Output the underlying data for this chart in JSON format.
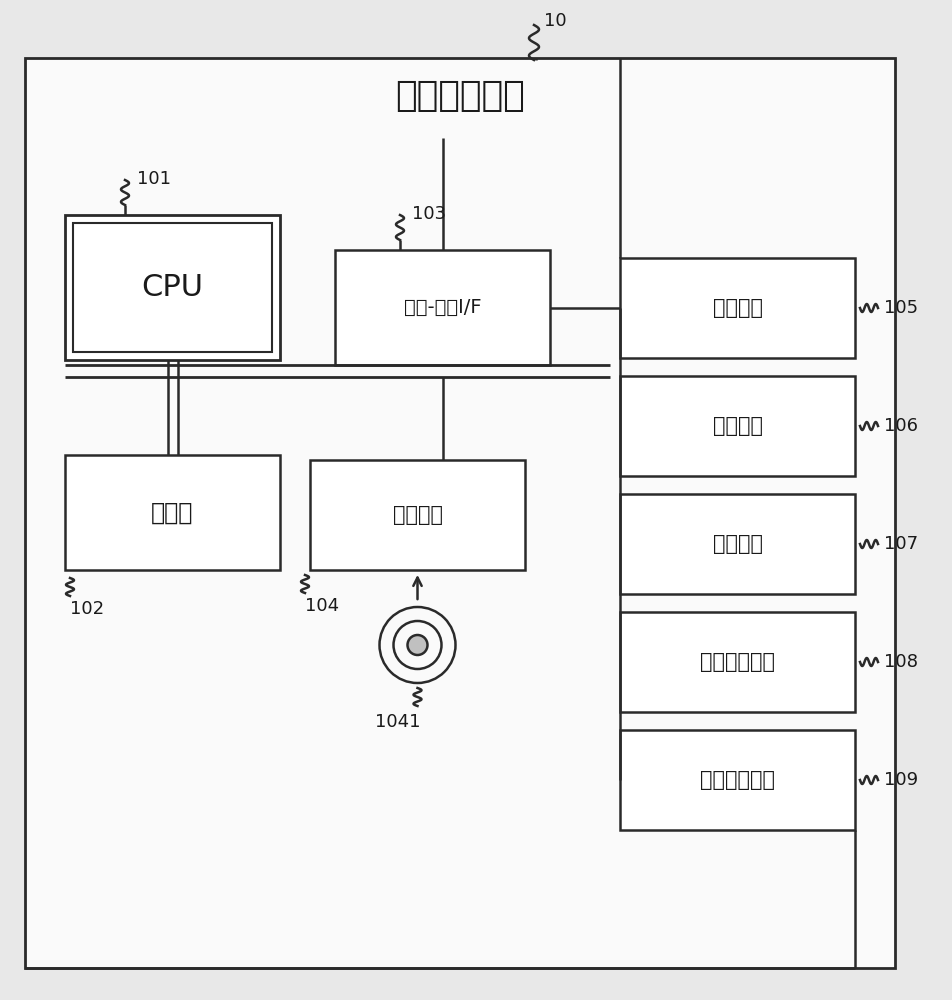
{
  "title": "信息处理装置",
  "label_10": "10",
  "label_101": "101",
  "label_102": "102",
  "label_103": "103",
  "label_104": "104",
  "label_1041": "1041",
  "label_105": "105",
  "label_106": "106",
  "label_107": "107",
  "label_108": "108",
  "label_109": "109",
  "cpu_label": "CPU",
  "mem_label": "存储器",
  "io_label": "输入-输出I/F",
  "comm_label": "通信单元",
  "disp_label": "显示单元",
  "input_label": "输入单元",
  "imaging_label": "成像单元",
  "audio_label": "声音收集单元",
  "voice_label": "语音输出单元",
  "bg_color": "#ffffff",
  "box_color": "#ffffff",
  "box_edge": "#2a2a2a",
  "line_color": "#2a2a2a",
  "text_color": "#1a1a1a",
  "fig_bg": "#e8e8e8"
}
